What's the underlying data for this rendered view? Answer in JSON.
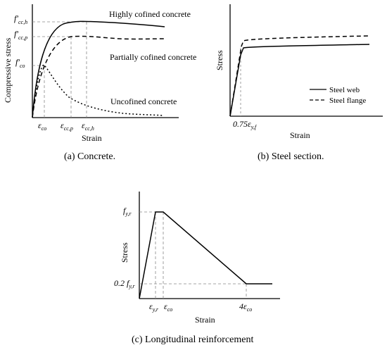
{
  "panel_a": {
    "caption": "(a) Concrete.",
    "ylabel": "Compressive stress",
    "xlabel": "Strain",
    "curve_labels": {
      "highly": "Highly cofined concrete",
      "partially": "Partially cofined concrete",
      "unconfined": "Uncofined concrete"
    },
    "y_ticks": [
      {
        "main": "f′",
        "sub": "cc,h"
      },
      {
        "main": "f′",
        "sub": "cc,p"
      },
      {
        "main": "f′",
        "sub": "co"
      }
    ],
    "x_ticks": [
      {
        "main": "ε",
        "sub": "co"
      },
      {
        "main": "ε",
        "sub": "cc,p"
      },
      {
        "main": "ε",
        "sub": "cc,h"
      }
    ]
  },
  "panel_b": {
    "caption": "(b) Steel section.",
    "ylabel": "Stress",
    "xlabel": "Strain",
    "x_tick": {
      "main": "0.75ε",
      "sub": "y,f"
    },
    "legend": [
      {
        "label": "Steel web",
        "style": "solid"
      },
      {
        "label": "Steel flange",
        "style": "dashed"
      }
    ]
  },
  "panel_c": {
    "caption": "(c) Longitudinal reinforcement",
    "ylabel": "Stress",
    "xlabel": "Strain",
    "y_ticks": [
      {
        "main": "f",
        "sub": "y,r"
      },
      {
        "main": "0.2 f",
        "sub": "y,r"
      }
    ],
    "x_ticks": [
      {
        "main": "ε",
        "sub": "y,r"
      },
      {
        "main": "ε",
        "sub": "co"
      },
      {
        "main": "4ε",
        "sub": "co"
      }
    ]
  },
  "colors": {
    "line": "#000000",
    "guide": "#888888"
  }
}
